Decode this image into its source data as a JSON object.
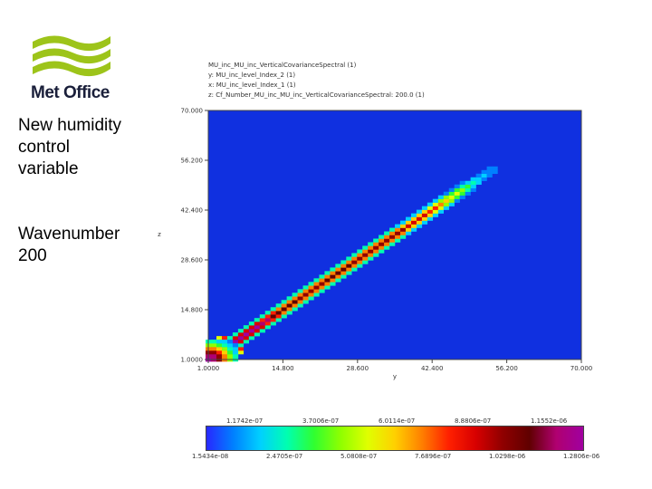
{
  "logo": {
    "text": "Met Office",
    "colors": [
      "#9dc41a",
      "#1a1f3a"
    ]
  },
  "side_text": {
    "line1": "New humidity control variable",
    "line2": "Wavenumber 200"
  },
  "plot_info": [
    "MU_inc_MU_inc_VerticalCovarianceSpectral (1)",
    "y: MU_inc_level_Index_2 (1)",
    "x: MU_inc_level_Index_1 (1)",
    "z: Cf_Number_MU_inc_MU_inc_VerticalCovarianceSpectral: 200.0 (1)"
  ],
  "chart_data": {
    "type": "heatmap",
    "xlabel": "y",
    "ylabel": "z",
    "xlim": [
      1,
      70
    ],
    "ylim": [
      1,
      70
    ],
    "x_ticks": [
      "1.0000",
      "14.800",
      "28.600",
      "42.400",
      "56.200",
      "70.000"
    ],
    "y_ticks": [
      "1.0000",
      "14.800",
      "28.600",
      "42.400",
      "56.200",
      "70.000"
    ],
    "grid": false,
    "background_color": "#1030e0",
    "colorbar": {
      "top_labels": [
        "1.1742e-07",
        "3.7006e-07",
        "6.0114e-07",
        "8.8806e-07",
        "1.1552e-06"
      ],
      "bottom_labels": [
        "1.5434e-08",
        "2.4705e-07",
        "5.0808e-07",
        "7.6896e-07",
        "1.0298e-06",
        "1.2806e-06"
      ],
      "colors": [
        "#2828ff",
        "#0080ff",
        "#00d0ff",
        "#00ffb0",
        "#30ff30",
        "#90ff00",
        "#e0ff00",
        "#ffd000",
        "#ff8000",
        "#ff2000",
        "#d80000",
        "#900000",
        "#600000",
        "#b00070",
        "#a000a0"
      ]
    },
    "diagonal_values": [
      {
        "level": 1,
        "value": 1.25e-06
      },
      {
        "level": 5,
        "value": 1.28e-06
      },
      {
        "level": 10,
        "value": 1.2e-06
      },
      {
        "level": 15,
        "value": 1.05e-06
      },
      {
        "level": 20,
        "value": 1e-06
      },
      {
        "level": 25,
        "value": 1.05e-06
      },
      {
        "level": 30,
        "value": 1e-06
      },
      {
        "level": 35,
        "value": 1e-06
      },
      {
        "level": 40,
        "value": 9e-07
      },
      {
        "level": 43,
        "value": 8e-07
      },
      {
        "level": 46,
        "value": 6e-07
      },
      {
        "level": 49,
        "value": 4e-07
      },
      {
        "level": 52,
        "value": 2e-07
      },
      {
        "level": 55,
        "value": 8e-08
      }
    ]
  }
}
